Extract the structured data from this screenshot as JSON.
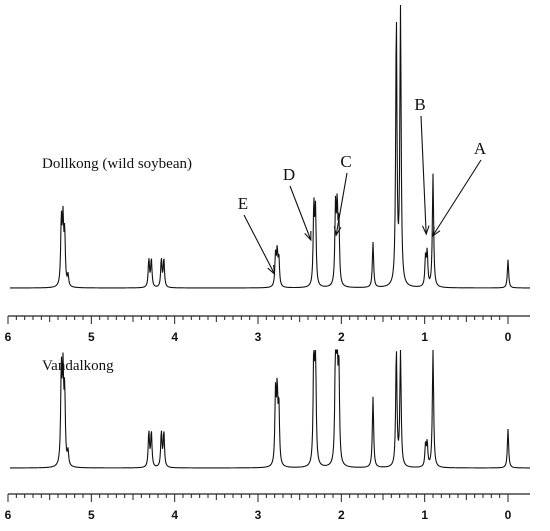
{
  "chart_data": [
    {
      "type": "line",
      "panel_label": "Dollkong (wild soybean)",
      "x_ticks": [
        "6",
        "5",
        "4",
        "3",
        "2",
        "1",
        "0"
      ],
      "xlim": [
        6,
        -0.4
      ],
      "peaks": [
        {
          "ppm": 5.36,
          "height": 0.23
        },
        {
          "ppm": 5.34,
          "height": 0.22
        },
        {
          "ppm": 5.32,
          "height": 0.18
        },
        {
          "ppm": 5.28,
          "height": 0.04
        },
        {
          "ppm": 4.31,
          "height": 0.1
        },
        {
          "ppm": 4.28,
          "height": 0.1
        },
        {
          "ppm": 4.16,
          "height": 0.1
        },
        {
          "ppm": 4.13,
          "height": 0.1
        },
        {
          "ppm": 2.79,
          "height": 0.11
        },
        {
          "ppm": 2.77,
          "height": 0.12
        },
        {
          "ppm": 2.75,
          "height": 0.1
        },
        {
          "ppm": 2.33,
          "height": 0.28
        },
        {
          "ppm": 2.31,
          "height": 0.26
        },
        {
          "ppm": 2.07,
          "height": 0.27
        },
        {
          "ppm": 2.05,
          "height": 0.26
        },
        {
          "ppm": 2.03,
          "height": 0.22
        },
        {
          "ppm": 1.62,
          "height": 0.16
        },
        {
          "ppm": 1.34,
          "height": 0.95
        },
        {
          "ppm": 1.29,
          "height": 1.0
        },
        {
          "ppm": 0.99,
          "height": 0.1
        },
        {
          "ppm": 0.97,
          "height": 0.12
        },
        {
          "ppm": 0.9,
          "height": 0.4
        },
        {
          "ppm": 0.0,
          "height": 0.1
        }
      ],
      "annotations": [
        {
          "label": "A",
          "ppm": 0.88
        },
        {
          "label": "B",
          "ppm": 0.97
        },
        {
          "label": "C",
          "ppm": 2.05
        },
        {
          "label": "D",
          "ppm": 2.33
        },
        {
          "label": "E",
          "ppm": 2.79
        }
      ]
    },
    {
      "type": "line",
      "panel_label": "Vandalkong",
      "x_ticks": [
        "6",
        "5",
        "4",
        "3",
        "2",
        "1",
        "0"
      ],
      "xlim": [
        6,
        -0.4
      ],
      "peaks": [
        {
          "ppm": 5.36,
          "height": 0.8
        },
        {
          "ppm": 5.34,
          "height": 0.74
        },
        {
          "ppm": 5.32,
          "height": 0.6
        },
        {
          "ppm": 5.28,
          "height": 0.12
        },
        {
          "ppm": 4.31,
          "height": 0.3
        },
        {
          "ppm": 4.28,
          "height": 0.3
        },
        {
          "ppm": 4.16,
          "height": 0.3
        },
        {
          "ppm": 4.13,
          "height": 0.3
        },
        {
          "ppm": 2.79,
          "height": 0.6
        },
        {
          "ppm": 2.77,
          "height": 0.6
        },
        {
          "ppm": 2.75,
          "height": 0.5
        },
        {
          "ppm": 2.33,
          "height": 1.0
        },
        {
          "ppm": 2.31,
          "height": 0.95
        },
        {
          "ppm": 2.07,
          "height": 1.0
        },
        {
          "ppm": 2.05,
          "height": 0.95
        },
        {
          "ppm": 2.03,
          "height": 0.8
        },
        {
          "ppm": 1.62,
          "height": 0.6
        },
        {
          "ppm": 1.34,
          "height": 1.0
        },
        {
          "ppm": 1.29,
          "height": 1.0
        },
        {
          "ppm": 0.99,
          "height": 0.18
        },
        {
          "ppm": 0.97,
          "height": 0.2
        },
        {
          "ppm": 0.9,
          "height": 1.0
        },
        {
          "ppm": 0.0,
          "height": 0.33
        }
      ],
      "annotations": []
    }
  ]
}
